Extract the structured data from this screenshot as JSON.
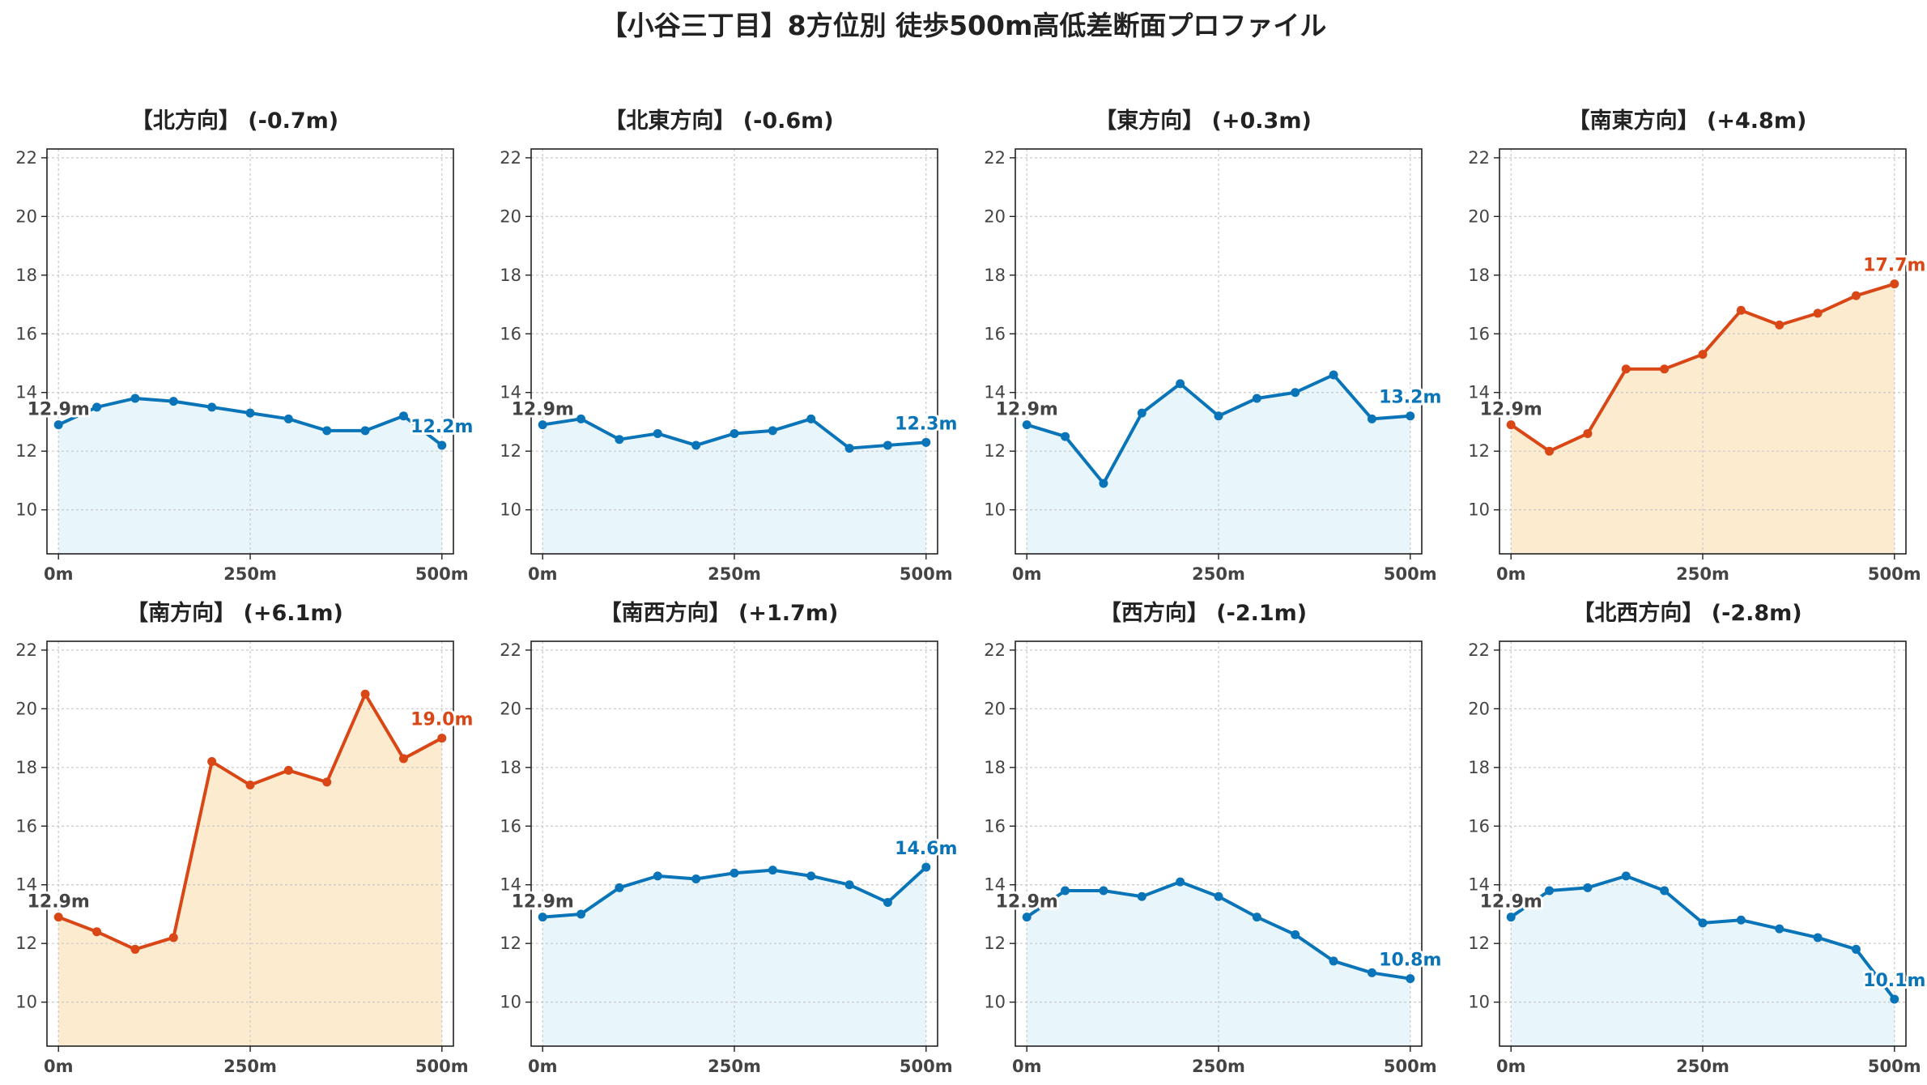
{
  "title": "【小谷三丁目】8方位別 徒歩500m高低差断面プロファイル",
  "colors": {
    "down_line": "#0a74b8",
    "down_fill": "#e8f6fc",
    "up_line": "#d94716",
    "up_fill": "#fdebd0",
    "start_label": "#444444",
    "grid": "#c8c8c8",
    "axis": "#222222",
    "tick_label": "#444444"
  },
  "chart_data": [
    {
      "type": "area",
      "title": "【北方向】 (-0.7m)",
      "direction": "down",
      "x": [
        0,
        50,
        100,
        150,
        200,
        250,
        300,
        350,
        400,
        450,
        500
      ],
      "values": [
        12.9,
        13.5,
        13.8,
        13.7,
        13.5,
        13.3,
        13.1,
        12.7,
        12.7,
        13.2,
        12.2
      ],
      "start_label": "12.9m",
      "end_label": "12.2m",
      "xticks": [
        "0m",
        "250m",
        "500m"
      ],
      "yticks": [
        "10",
        "12",
        "14",
        "16",
        "18",
        "20",
        "22"
      ],
      "xlim": [
        -15,
        515
      ],
      "ylim": [
        8.5,
        22.3
      ],
      "grid": true
    },
    {
      "type": "area",
      "title": "【北東方向】 (-0.6m)",
      "direction": "down",
      "x": [
        0,
        50,
        100,
        150,
        200,
        250,
        300,
        350,
        400,
        450,
        500
      ],
      "values": [
        12.9,
        13.1,
        12.4,
        12.6,
        12.2,
        12.6,
        12.7,
        13.1,
        12.1,
        12.2,
        12.3
      ],
      "start_label": "12.9m",
      "end_label": "12.3m",
      "xticks": [
        "0m",
        "250m",
        "500m"
      ],
      "yticks": [
        "10",
        "12",
        "14",
        "16",
        "18",
        "20",
        "22"
      ],
      "xlim": [
        -15,
        515
      ],
      "ylim": [
        8.5,
        22.3
      ],
      "grid": true
    },
    {
      "type": "area",
      "title": "【東方向】 (+0.3m)",
      "direction": "down",
      "x": [
        0,
        50,
        100,
        150,
        200,
        250,
        300,
        350,
        400,
        450,
        500
      ],
      "values": [
        12.9,
        12.5,
        10.9,
        13.3,
        14.3,
        13.2,
        13.8,
        14.0,
        14.6,
        13.1,
        13.2
      ],
      "start_label": "12.9m",
      "end_label": "13.2m",
      "xticks": [
        "0m",
        "250m",
        "500m"
      ],
      "yticks": [
        "10",
        "12",
        "14",
        "16",
        "18",
        "20",
        "22"
      ],
      "xlim": [
        -15,
        515
      ],
      "ylim": [
        8.5,
        22.3
      ],
      "grid": true
    },
    {
      "type": "area",
      "title": "【南東方向】 (+4.8m)",
      "direction": "up",
      "x": [
        0,
        50,
        100,
        150,
        200,
        250,
        300,
        350,
        400,
        450,
        500
      ],
      "values": [
        12.9,
        12.0,
        12.6,
        14.8,
        14.8,
        15.3,
        16.8,
        16.3,
        16.7,
        17.3,
        17.7
      ],
      "start_label": "12.9m",
      "end_label": "17.7m",
      "xticks": [
        "0m",
        "250m",
        "500m"
      ],
      "yticks": [
        "10",
        "12",
        "14",
        "16",
        "18",
        "20",
        "22"
      ],
      "xlim": [
        -15,
        515
      ],
      "ylim": [
        8.5,
        22.3
      ],
      "grid": true
    },
    {
      "type": "area",
      "title": "【南方向】 (+6.1m)",
      "direction": "up",
      "x": [
        0,
        50,
        100,
        150,
        200,
        250,
        300,
        350,
        400,
        450,
        500
      ],
      "values": [
        12.9,
        12.4,
        11.8,
        12.2,
        18.2,
        17.4,
        17.9,
        17.5,
        20.5,
        18.3,
        19.0
      ],
      "start_label": "12.9m",
      "end_label": "19.0m",
      "xticks": [
        "0m",
        "250m",
        "500m"
      ],
      "yticks": [
        "10",
        "12",
        "14",
        "16",
        "18",
        "20",
        "22"
      ],
      "xlim": [
        -15,
        515
      ],
      "ylim": [
        8.5,
        22.3
      ],
      "grid": true
    },
    {
      "type": "area",
      "title": "【南西方向】 (+1.7m)",
      "direction": "down",
      "x": [
        0,
        50,
        100,
        150,
        200,
        250,
        300,
        350,
        400,
        450,
        500
      ],
      "values": [
        12.9,
        13.0,
        13.9,
        14.3,
        14.2,
        14.4,
        14.5,
        14.3,
        14.0,
        13.4,
        14.6
      ],
      "start_label": "12.9m",
      "end_label": "14.6m",
      "xticks": [
        "0m",
        "250m",
        "500m"
      ],
      "yticks": [
        "10",
        "12",
        "14",
        "16",
        "18",
        "20",
        "22"
      ],
      "xlim": [
        -15,
        515
      ],
      "ylim": [
        8.5,
        22.3
      ],
      "grid": true
    },
    {
      "type": "area",
      "title": "【西方向】 (-2.1m)",
      "direction": "down",
      "x": [
        0,
        50,
        100,
        150,
        200,
        250,
        300,
        350,
        400,
        450,
        500
      ],
      "values": [
        12.9,
        13.8,
        13.8,
        13.6,
        14.1,
        13.6,
        12.9,
        12.3,
        11.4,
        11.0,
        10.8
      ],
      "start_label": "12.9m",
      "end_label": "10.8m",
      "xticks": [
        "0m",
        "250m",
        "500m"
      ],
      "yticks": [
        "10",
        "12",
        "14",
        "16",
        "18",
        "20",
        "22"
      ],
      "xlim": [
        -15,
        515
      ],
      "ylim": [
        8.5,
        22.3
      ],
      "grid": true
    },
    {
      "type": "area",
      "title": "【北西方向】 (-2.8m)",
      "direction": "down",
      "x": [
        0,
        50,
        100,
        150,
        200,
        250,
        300,
        350,
        400,
        450,
        500
      ],
      "values": [
        12.9,
        13.8,
        13.9,
        14.3,
        13.8,
        12.7,
        12.8,
        12.5,
        12.2,
        11.8,
        10.1
      ],
      "start_label": "12.9m",
      "end_label": "10.1m",
      "xticks": [
        "0m",
        "250m",
        "500m"
      ],
      "yticks": [
        "10",
        "12",
        "14",
        "16",
        "18",
        "20",
        "22"
      ],
      "xlim": [
        -15,
        515
      ],
      "ylim": [
        8.5,
        22.3
      ],
      "grid": true
    }
  ]
}
